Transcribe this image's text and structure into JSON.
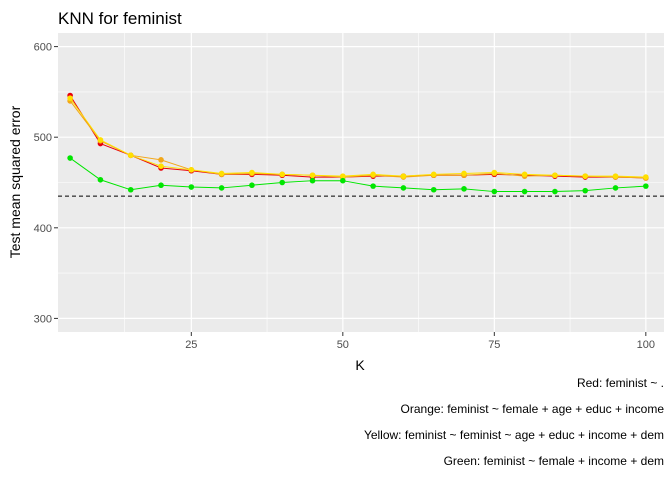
{
  "chart_data": {
    "type": "line",
    "title": "KNN for feminist",
    "xlabel": "K",
    "ylabel": "Test mean squared error",
    "xlim": [
      3,
      103
    ],
    "ylim": [
      285,
      615
    ],
    "x_ticks": [
      25,
      50,
      75,
      100
    ],
    "y_ticks": [
      300,
      400,
      500,
      600
    ],
    "grid": true,
    "panel_background": "#ebebeb",
    "reference_line": {
      "y": 435,
      "style": "dashed",
      "color": "#000000"
    },
    "x": [
      5,
      10,
      15,
      20,
      25,
      30,
      35,
      40,
      45,
      50,
      55,
      60,
      65,
      70,
      75,
      80,
      85,
      90,
      95,
      100
    ],
    "series": [
      {
        "key": "red",
        "color": "#e8000b",
        "values": [
          546,
          493,
          480,
          466,
          463,
          459,
          459,
          458,
          456,
          456,
          457,
          457,
          458,
          458,
          459,
          458,
          457,
          456,
          456,
          455
        ]
      },
      {
        "key": "orange",
        "color": "#f2a71a",
        "values": [
          540,
          496,
          480,
          475,
          464,
          459,
          460,
          459,
          458,
          456,
          458,
          456,
          458,
          458,
          460,
          457,
          458,
          457,
          456,
          455
        ]
      },
      {
        "key": "yellow",
        "color": "#ffe000",
        "values": [
          543,
          497,
          480,
          468,
          464,
          460,
          461,
          459,
          458,
          457,
          459,
          457,
          459,
          460,
          461,
          459,
          458,
          457,
          457,
          456
        ]
      },
      {
        "key": "green",
        "color": "#00e600",
        "values": [
          477,
          453,
          442,
          447,
          445,
          444,
          447,
          450,
          452,
          452,
          446,
          444,
          442,
          443,
          440,
          440,
          440,
          441,
          444,
          446
        ]
      }
    ],
    "caption_lines": [
      "Red: feminist ~ .",
      "Orange: feminist ~ female + age + educ + income",
      "Yellow: feminist ~ feminist ~ age + educ + income + dem",
      "Green: feminist ~ female + income + dem"
    ]
  }
}
